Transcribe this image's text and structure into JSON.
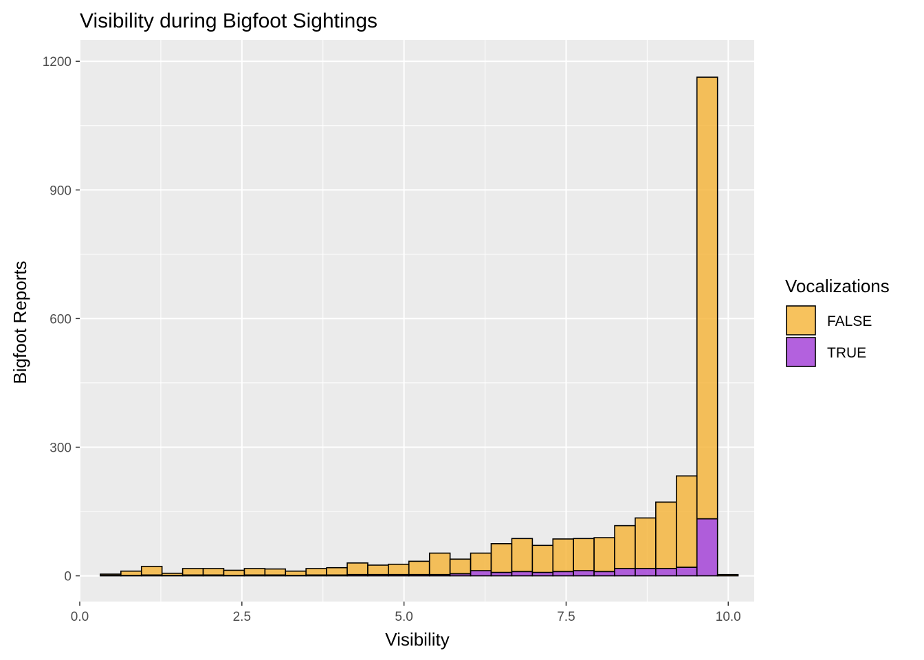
{
  "chart_data": {
    "type": "bar",
    "subtype": "stacked-histogram",
    "title": "Visibility during Bigfoot Sightings",
    "xlabel": "Visibility",
    "ylabel": "Bigfoot Reports",
    "xlim": [
      0,
      10.4
    ],
    "ylim": [
      -60,
      1250
    ],
    "x_ticks": [
      0,
      2.5,
      5,
      7.5,
      10
    ],
    "x_tick_labels": [
      "0.0",
      "2.5",
      "5.0",
      "7.5",
      "10.0"
    ],
    "y_ticks": [
      0,
      300,
      600,
      900,
      1200
    ],
    "y_tick_labels": [
      "0",
      "300",
      "600",
      "900",
      "1200"
    ],
    "grid": true,
    "legend": {
      "title": "Vocalizations",
      "position": "right"
    },
    "bin_width": 0.3172,
    "bins": [
      0.476,
      0.793,
      1.11,
      1.428,
      1.745,
      2.062,
      2.379,
      2.697,
      3.014,
      3.331,
      3.648,
      3.966,
      4.283,
      4.6,
      4.917,
      5.234,
      5.552,
      5.869,
      6.186,
      6.503,
      6.821,
      7.138,
      7.455,
      7.772,
      8.09,
      8.407,
      8.724,
      9.041,
      9.359,
      9.676,
      9.993
    ],
    "series": [
      {
        "name": "FALSE",
        "color": "#f5b335",
        "values": [
          3,
          10,
          20,
          5,
          15,
          15,
          12,
          15,
          14,
          10,
          15,
          17,
          27,
          22,
          24,
          31,
          50,
          34,
          41,
          67,
          77,
          63,
          76,
          75,
          79,
          100,
          118,
          155,
          213,
          1030,
          3
        ]
      },
      {
        "name": "TRUE",
        "color": "#a03ad6",
        "values": [
          1,
          1,
          2,
          1,
          2,
          2,
          1,
          2,
          2,
          1,
          2,
          2,
          3,
          3,
          3,
          3,
          3,
          5,
          12,
          8,
          10,
          8,
          10,
          12,
          10,
          17,
          17,
          17,
          20,
          133,
          0
        ]
      }
    ]
  }
}
